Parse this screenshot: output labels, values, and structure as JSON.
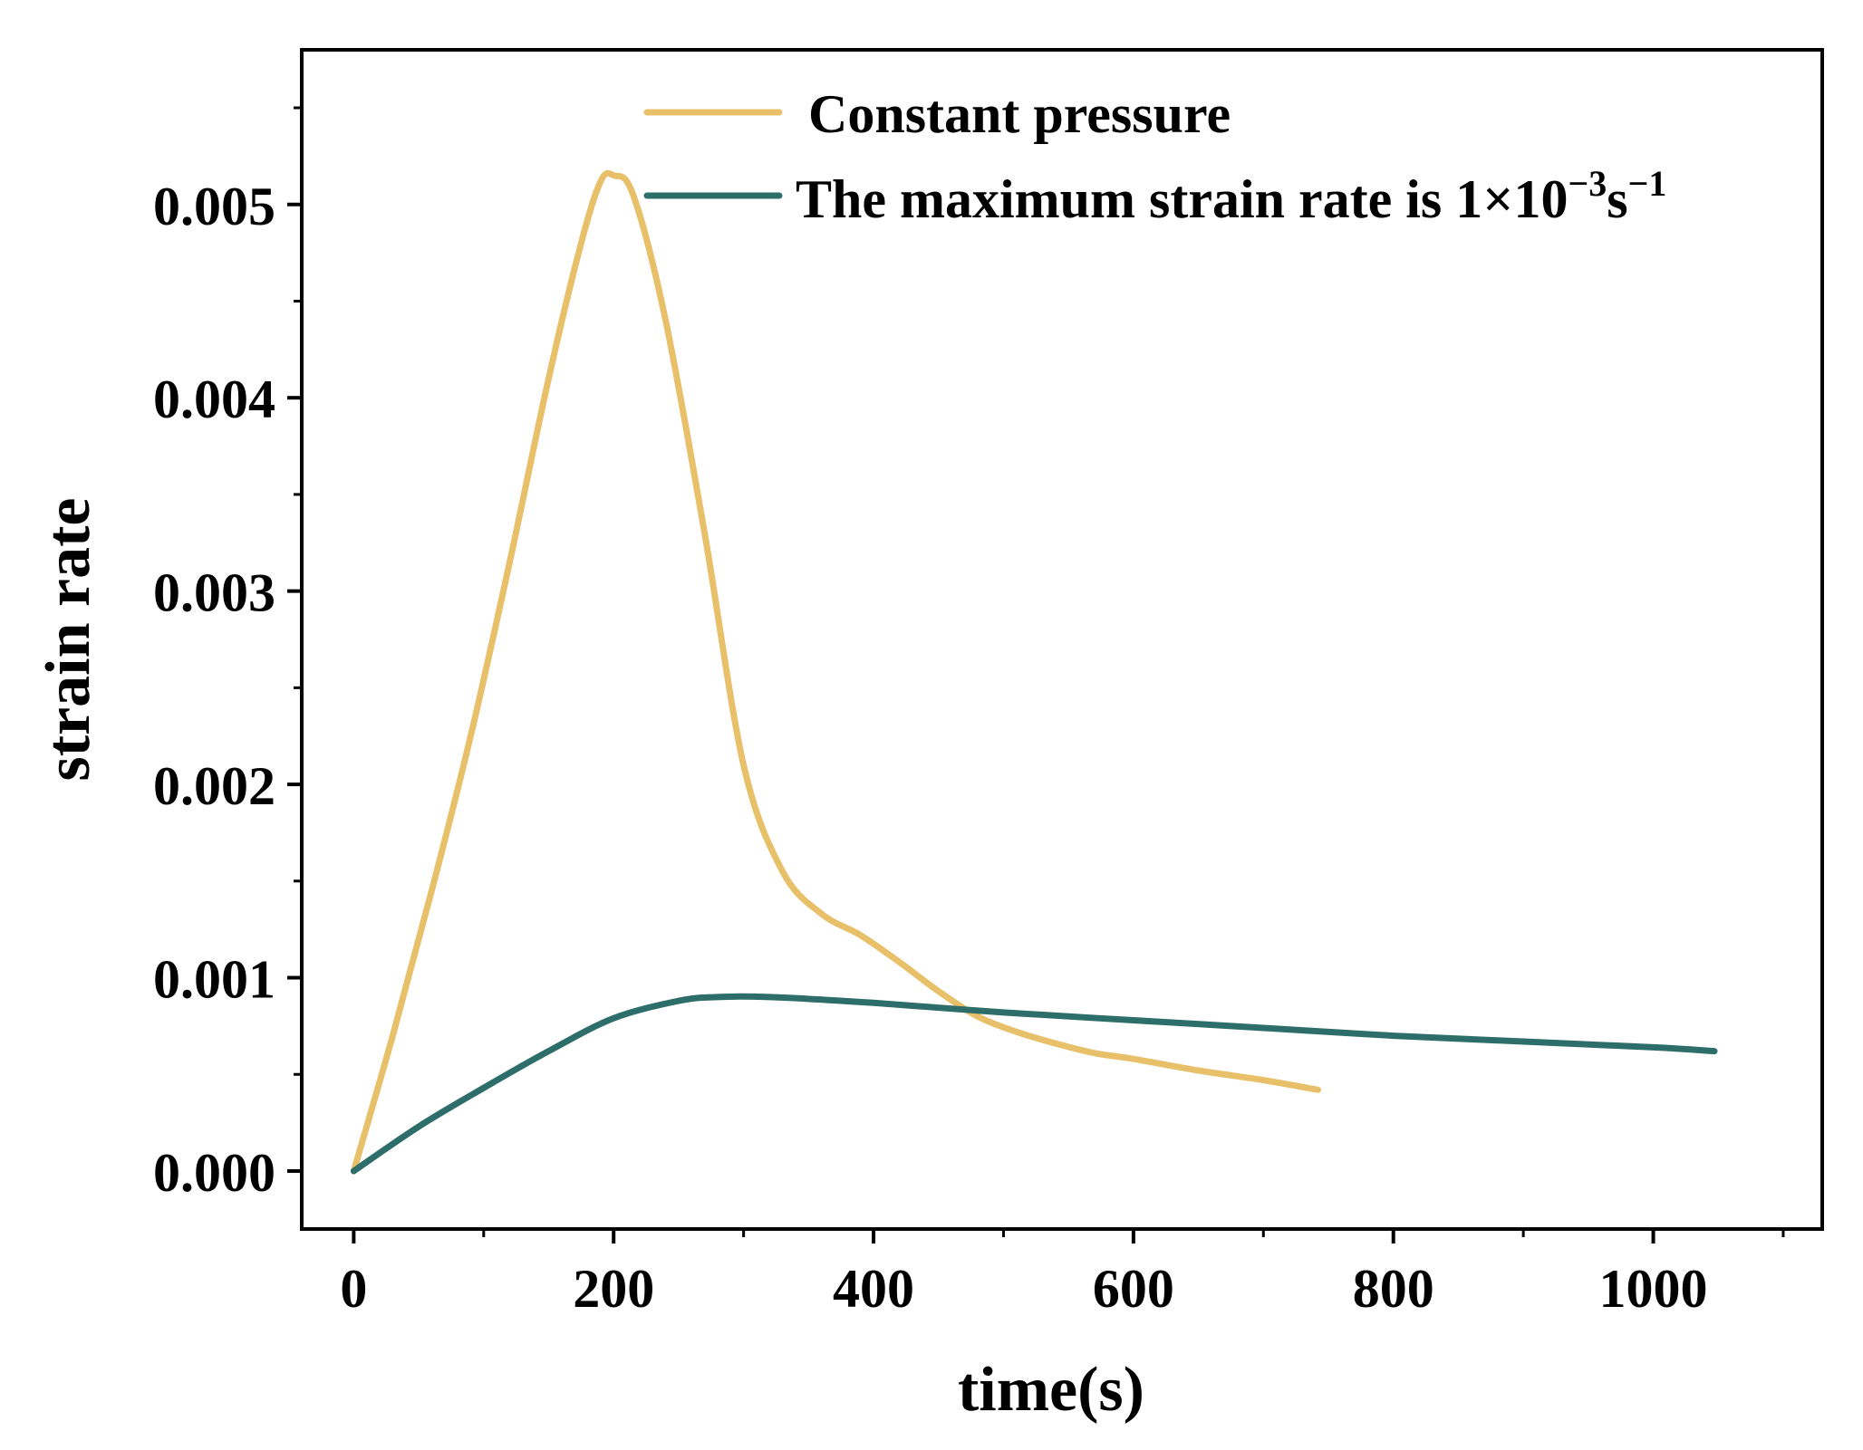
{
  "chart_data": {
    "type": "line",
    "title": "",
    "xlabel": "time(s)",
    "ylabel": "strain rate",
    "xlim": [
      -40,
      1130
    ],
    "ylim": [
      -0.0003,
      0.0058
    ],
    "x_ticks": [
      0,
      200,
      400,
      600,
      800,
      1000
    ],
    "x_tick_labels": [
      "0",
      "200",
      "400",
      "600",
      "800",
      "1000"
    ],
    "x_minor_ticks": [
      100,
      300,
      500,
      700,
      900,
      1100
    ],
    "y_ticks": [
      0,
      0.001,
      0.002,
      0.003,
      0.004,
      0.005
    ],
    "y_tick_labels": [
      "0.000",
      "0.001",
      "0.002",
      "0.003",
      "0.004",
      "0.005"
    ],
    "y_minor_ticks": [
      0.0005,
      0.0015,
      0.0025,
      0.0035,
      0.0045,
      0.0055
    ],
    "grid": false,
    "legend_position": "top-right",
    "series": [
      {
        "name": "Constant pressure",
        "color": "#E8C06A",
        "x": [
          0,
          30,
          60,
          90,
          120,
          150,
          175,
          190,
          200,
          215,
          240,
          270,
          300,
          330,
          360,
          390,
          420,
          450,
          480,
          510,
          540,
          570,
          600,
          650,
          700,
          742
        ],
        "y": [
          0,
          0.0007,
          0.00145,
          0.00225,
          0.00315,
          0.0041,
          0.0048,
          0.00512,
          0.00515,
          0.00505,
          0.0044,
          0.0033,
          0.0021,
          0.00155,
          0.00133,
          0.00122,
          0.00108,
          0.00093,
          0.0008,
          0.00072,
          0.00066,
          0.00061,
          0.00058,
          0.00052,
          0.00047,
          0.00042
        ]
      },
      {
        "name": "The maximum strain rate is 1×10",
        "name_sup_1": "−3",
        "name_mid": "s",
        "name_sup_2": "−1",
        "color": "#2E6E6A",
        "x": [
          0,
          50,
          100,
          150,
          200,
          250,
          280,
          320,
          400,
          500,
          600,
          700,
          800,
          900,
          1000,
          1047
        ],
        "y": [
          0,
          0.00023,
          0.00043,
          0.00062,
          0.00079,
          0.00088,
          0.0009,
          0.0009,
          0.00087,
          0.00082,
          0.00078,
          0.00074,
          0.0007,
          0.00067,
          0.00064,
          0.00062
        ]
      }
    ]
  }
}
